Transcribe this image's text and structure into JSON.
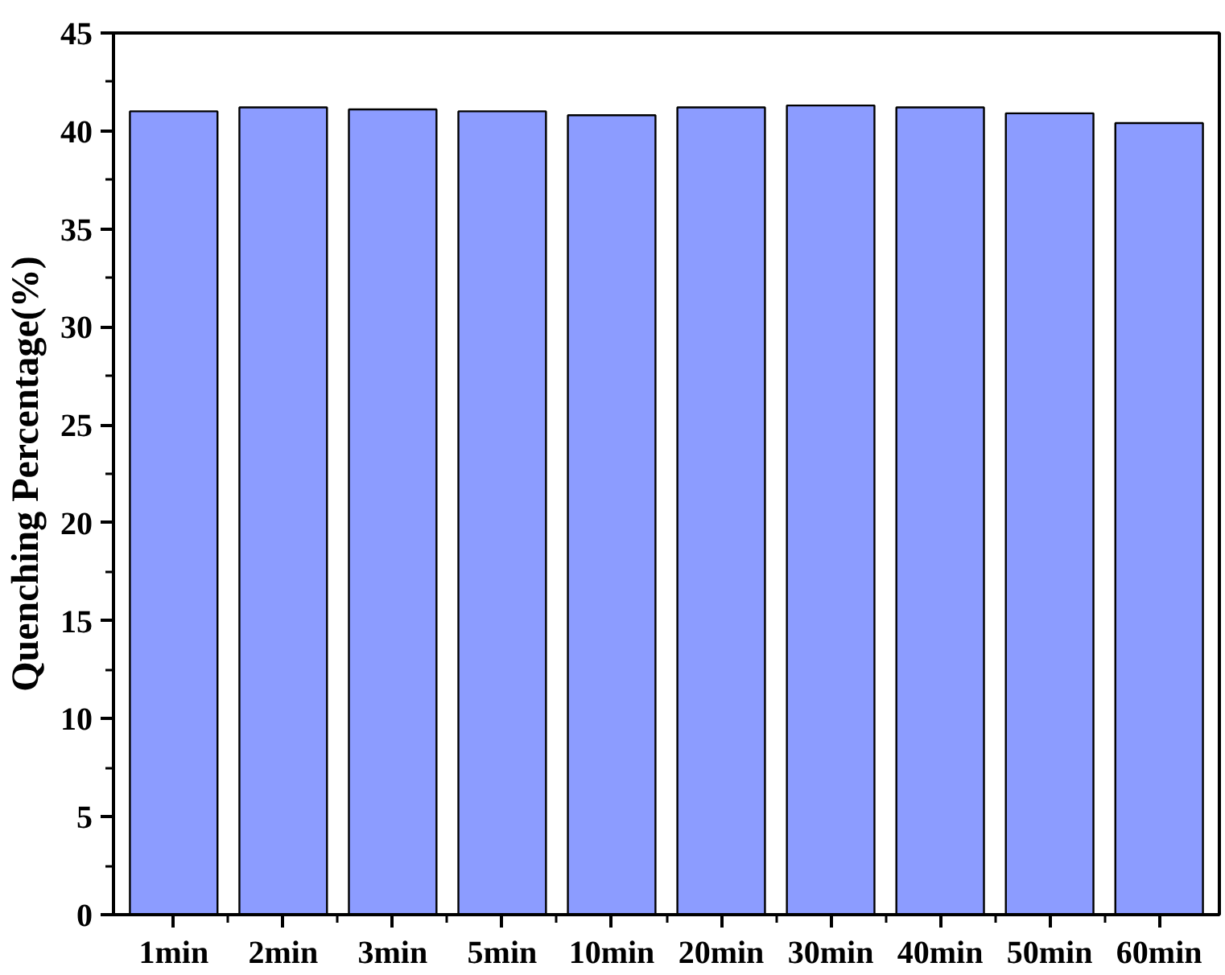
{
  "chart_data": {
    "type": "bar",
    "ylabel": "Quenching Percentage(%)",
    "categories": [
      "1min",
      "2min",
      "3min",
      "5min",
      "10min",
      "20min",
      "30min",
      "40min",
      "50min",
      "60min"
    ],
    "values": [
      41.0,
      41.2,
      41.1,
      41.0,
      40.8,
      41.2,
      41.3,
      41.2,
      40.9,
      40.4
    ],
    "color": "#8c9cff",
    "ylim": [
      0,
      45
    ],
    "yticks": [
      0,
      5,
      10,
      15,
      20,
      25,
      30,
      35,
      40,
      45
    ]
  }
}
